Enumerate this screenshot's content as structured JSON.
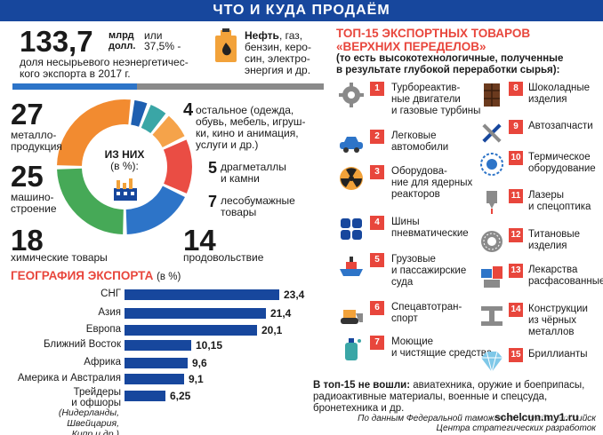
{
  "banner": {
    "title": "ЧТО И КУДА ПРОДАЁМ"
  },
  "headline": {
    "value": "133,7",
    "unit_line1": "млрд",
    "unit_line2": "долл.",
    "or_line1": "или",
    "or_line2": "37,5% -",
    "desc_line1": "доля несырьевого неэнергетичес-",
    "desc_line2": "кого экспорта в 2017 г.",
    "oil_bold": "Нефть",
    "oil_rest1": ", газ,",
    "oil_line2": "бензин, керо-",
    "oil_line3": "син, электро-",
    "oil_line4": "энергия и др."
  },
  "donut": {
    "center_line1": "ИЗ НИХ",
    "center_line2": "(в %):",
    "segments": [
      {
        "value": "27",
        "line1": "металло-",
        "line2": "продукция",
        "color": "#f28b30"
      },
      {
        "value": "25",
        "line1": "машино-",
        "line2": "строение",
        "color": "#46a957"
      },
      {
        "value": "18",
        "line1": "химические товары",
        "line2": "",
        "color": "#2d74c8"
      },
      {
        "value": "14",
        "line1": "продовольствие",
        "line2": "",
        "color": "#ea4d44"
      },
      {
        "value": "7",
        "line1": "лесобумажные",
        "line2": "товары",
        "color": "#f5a34a"
      },
      {
        "value": "5",
        "line1": "драгметаллы",
        "line2": "и камни",
        "color": "#3aa6a6"
      },
      {
        "value": "4",
        "line1": "остальное (одежда,",
        "line2": "обувь, мебель, игрушки, кино и анимация, услуги и др.)",
        "color": "#1e5fb0"
      }
    ],
    "other_lines": [
      "остальное (одежда,",
      "обувь, мебель, игруш-",
      "ки, кино и анимация,",
      "услуги и др.)"
    ]
  },
  "geo": {
    "title": "ГЕОГРАФИЯ ЭКСПОРТА",
    "unit": "(в %)",
    "footnote_line1": "(Нидерланды,",
    "footnote_line2": "Швейцария, Кипр и др.)"
  },
  "chart_data": {
    "type": "bar",
    "orientation": "horizontal",
    "title": "ГЕОГРАФИЯ ЭКСПОРТА",
    "unit": "(в %)",
    "categories": [
      "СНГ",
      "Азия",
      "Европа",
      "Ближний Восток",
      "Африка",
      "Америка и Австралия",
      "Трейдеры и офшоры"
    ],
    "values": [
      23.4,
      21.4,
      20.1,
      10.15,
      9.6,
      9.1,
      6.25
    ],
    "value_labels": [
      "23,4",
      "21,4",
      "20,1",
      "10,15",
      "9,6",
      "9,1",
      "6,25"
    ],
    "category_lines": [
      [
        "СНГ"
      ],
      [
        "Азия"
      ],
      [
        "Европа"
      ],
      [
        "Ближний Восток"
      ],
      [
        "Африка"
      ],
      [
        "Америка и Австралия"
      ],
      [
        "Трейдеры",
        "и офшоры"
      ]
    ],
    "bar_color": "#17479d"
  },
  "top15": {
    "title_line1": "ТОП-15 ЭКСПОРТНЫХ ТОВАРОВ",
    "title_line2": "«ВЕРХНИХ ПЕРЕДЕЛОВ»",
    "sub_line1": "(то есть высокотехнологичные, полученные",
    "sub_line2": "в результате глубокой переработки сырья):",
    "items": [
      {
        "n": "1",
        "l1": "Турбореактив-",
        "l2": "ные двигатели",
        "l3": "и газовые турбины",
        "icon": "gear-icon"
      },
      {
        "n": "2",
        "l1": "Легковые",
        "l2": "автомобили",
        "l3": "",
        "icon": "car-icon"
      },
      {
        "n": "3",
        "l1": "Оборудова-",
        "l2": "ние для ядерных",
        "l3": "реакторов",
        "icon": "radiation-icon"
      },
      {
        "n": "4",
        "l1": "Шины",
        "l2": "пневматические",
        "l3": "",
        "icon": "tires-icon"
      },
      {
        "n": "5",
        "l1": "Грузовые",
        "l2": "и пассажирские",
        "l3": "суда",
        "icon": "ship-icon"
      },
      {
        "n": "6",
        "l1": "Спецавтотран-",
        "l2": "спорт",
        "l3": "",
        "icon": "bulldozer-icon"
      },
      {
        "n": "7",
        "l1": "Моющие",
        "l2": "и чистящие средства",
        "l3": "",
        "icon": "detergent-icon"
      },
      {
        "n": "8",
        "l1": "Шоколадные",
        "l2": "изделия",
        "l3": "",
        "icon": "chocolate-icon"
      },
      {
        "n": "9",
        "l1": "Автозапчасти",
        "l2": "",
        "l3": "",
        "icon": "tools-icon"
      },
      {
        "n": "10",
        "l1": "Термическое",
        "l2": "оборудование",
        "l3": "",
        "icon": "heater-icon"
      },
      {
        "n": "11",
        "l1": "Лазеры",
        "l2": "и спецоптика",
        "l3": "",
        "icon": "laser-icon"
      },
      {
        "n": "12",
        "l1": "Титановые",
        "l2": "изделия",
        "l3": "",
        "icon": "titanium-icon"
      },
      {
        "n": "13",
        "l1": "Лекарства",
        "l2": "расфасованные",
        "l3": "",
        "icon": "medicine-icon"
      },
      {
        "n": "14",
        "l1": "Конструкции",
        "l2": "из чёрных",
        "l3": "металлов",
        "icon": "beam-icon"
      },
      {
        "n": "15",
        "l1": "Бриллианты",
        "l2": "",
        "l3": "",
        "icon": "diamond-icon"
      }
    ],
    "excluded_bold": "В топ-15 не вошли:",
    "excluded_rest": " авиатехника, оружие и боеприпасы,",
    "excluded_line2": "радиоактивные материалы, военные и спецсуда, бронетехника и др."
  },
  "source": {
    "line1": "По данным Федеральной таможенной службы, Российск",
    "line2": "Центра стратегических разработок",
    "watermark": "schelcun.my1.ru"
  },
  "colors": {
    "brand_blue": "#17479d",
    "accent_red": "#e8463c",
    "grey_bar": "#8a8a8a"
  }
}
